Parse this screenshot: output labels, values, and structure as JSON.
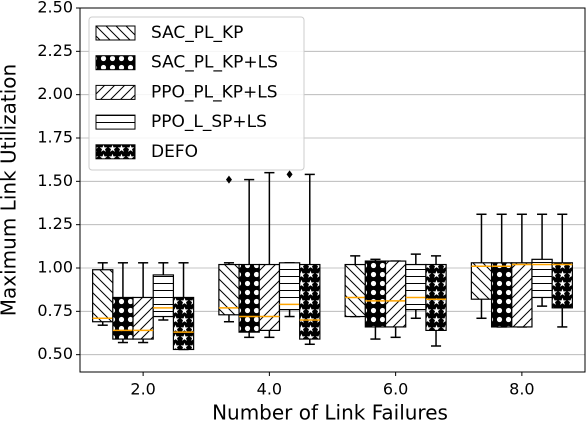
{
  "chart_data": {
    "type": "box",
    "xlabel": "Number of Link Failures",
    "ylabel": "Maximum Link Utilization",
    "x": [
      2,
      4,
      6,
      8
    ],
    "xlim": [
      1,
      9
    ],
    "xticks": [
      {
        "value": 2,
        "label": "2.0"
      },
      {
        "value": 4,
        "label": "4.0"
      },
      {
        "value": 6,
        "label": "6.0"
      },
      {
        "value": 8,
        "label": "8.0"
      }
    ],
    "ylim": [
      0.4,
      2.5
    ],
    "yticks": [
      {
        "value": 0.5,
        "label": "0.50"
      },
      {
        "value": 0.75,
        "label": "0.75"
      },
      {
        "value": 1.0,
        "label": "1.00"
      },
      {
        "value": 1.25,
        "label": "1.25"
      },
      {
        "value": 1.5,
        "label": "1.50"
      },
      {
        "value": 1.75,
        "label": "1.75"
      },
      {
        "value": 2.0,
        "label": "2.00"
      },
      {
        "value": 2.25,
        "label": "2.25"
      },
      {
        "value": 2.5,
        "label": "2.50"
      }
    ],
    "grid": true,
    "legend": "upper left",
    "median_color": "#ffa500",
    "series": [
      {
        "name": "SAC_PL_KP",
        "hatch": "\\",
        "boxes": [
          {
            "low": 0.67,
            "q1": 0.69,
            "median": 0.71,
            "q3": 0.99,
            "high": 1.03
          },
          {
            "low": 0.69,
            "q1": 0.73,
            "median": 0.77,
            "q3": 1.02,
            "high": 1.03,
            "outliers": [
              1.51
            ]
          },
          {
            "low": 0.72,
            "q1": 0.72,
            "median": 0.83,
            "q3": 1.02,
            "high": 1.07
          },
          {
            "low": 0.71,
            "q1": 0.82,
            "median": 1.01,
            "q3": 1.03,
            "high": 1.31
          }
        ]
      },
      {
        "name": "SAC_PL_KP+LS",
        "hatch": "o",
        "boxes": [
          {
            "low": 0.57,
            "q1": 0.59,
            "median": 0.64,
            "q3": 0.83,
            "high": 1.03
          },
          {
            "low": 0.6,
            "q1": 0.63,
            "median": 0.72,
            "q3": 1.02,
            "high": 1.51
          },
          {
            "low": 0.59,
            "q1": 0.66,
            "median": 0.81,
            "q3": 1.04,
            "high": 1.05
          },
          {
            "low": 0.66,
            "q1": 0.66,
            "median": 1.01,
            "q3": 1.03,
            "high": 1.31
          }
        ]
      },
      {
        "name": "PPO_PL_KP+LS",
        "hatch": "/",
        "boxes": [
          {
            "low": 0.57,
            "q1": 0.59,
            "median": 0.64,
            "q3": 0.83,
            "high": 1.03
          },
          {
            "low": 0.6,
            "q1": 0.64,
            "median": 0.72,
            "q3": 1.02,
            "high": 1.55
          },
          {
            "low": 0.6,
            "q1": 0.66,
            "median": 0.81,
            "q3": 1.04,
            "high": 1.04
          },
          {
            "low": 0.66,
            "q1": 0.66,
            "median": 1.02,
            "q3": 1.03,
            "high": 1.31
          }
        ]
      },
      {
        "name": "PPO_L_SP+LS",
        "hatch": "-",
        "boxes": [
          {
            "low": 0.7,
            "q1": 0.72,
            "median": 0.77,
            "q3": 0.96,
            "high": 1.03
          },
          {
            "low": 0.72,
            "q1": 0.76,
            "median": 0.79,
            "q3": 1.03,
            "high": 1.03,
            "outliers": [
              1.54
            ]
          },
          {
            "low": 0.71,
            "q1": 0.76,
            "median": 0.83,
            "q3": 1.02,
            "high": 1.08
          },
          {
            "low": 0.78,
            "q1": 0.83,
            "median": 1.02,
            "q3": 1.05,
            "high": 1.31
          }
        ]
      },
      {
        "name": "DEFO",
        "hatch": "*",
        "boxes": [
          {
            "low": 0.53,
            "q1": 0.53,
            "median": 0.63,
            "q3": 0.83,
            "high": 1.03
          },
          {
            "low": 0.56,
            "q1": 0.59,
            "median": 0.7,
            "q3": 1.02,
            "high": 1.54
          },
          {
            "low": 0.55,
            "q1": 0.64,
            "median": 0.82,
            "q3": 1.02,
            "high": 1.07
          },
          {
            "low": 0.66,
            "q1": 0.77,
            "median": 1.02,
            "q3": 1.03,
            "high": 1.31
          }
        ]
      }
    ]
  }
}
